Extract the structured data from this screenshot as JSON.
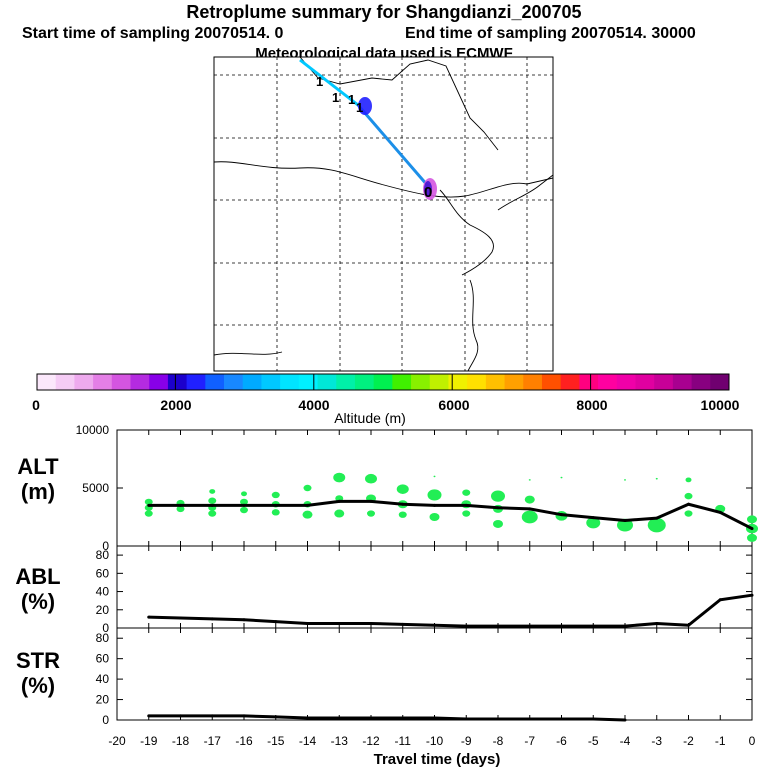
{
  "title": "Retroplume summary for Shangdianzi_200705",
  "subtitle_left": "Start time of sampling 20070514.    0",
  "subtitle_right": "End time of sampling 20070514. 30000",
  "met_data_note": "Meteorological data used is ECMWF",
  "colors": {
    "plume_line": "#1c8fe8",
    "plume_line_light": "#00c8ff",
    "dots": "#22ee55",
    "lines": "#000000"
  },
  "map": {
    "markers": [
      {
        "label": "1"
      },
      {
        "label": "1"
      },
      {
        "label": "1"
      },
      {
        "label": "1"
      },
      {
        "label": "0"
      }
    ]
  },
  "colorbar": {
    "label": "Altitude (m)",
    "ticks": [
      "0",
      "2000",
      "4000",
      "6000",
      "8000",
      "10000"
    ],
    "colors": [
      "#fbe8fb",
      "#f5ccf5",
      "#eeaaee",
      "#e47fe6",
      "#d455e0",
      "#b42be0",
      "#8800e8",
      "#1c00cc",
      "#2020ff",
      "#1060ff",
      "#1888ff",
      "#00aaff",
      "#00c8ff",
      "#00e4ff",
      "#00f0ff",
      "#00e8d8",
      "#00f0a8",
      "#00f080",
      "#00f050",
      "#40f000",
      "#88f000",
      "#c0f000",
      "#f0f000",
      "#ffe000",
      "#ffc000",
      "#ffa000",
      "#ff8000",
      "#ff5000",
      "#ff2020",
      "#ff0080",
      "#ff00a0",
      "#f000a8",
      "#e000a0",
      "#c80098",
      "#a80090",
      "#880080",
      "#700070"
    ]
  },
  "chart_data": [
    {
      "type": "line",
      "name": "ALT",
      "ylabel": "ALT\n(m)",
      "ylabel_lines": [
        "ALT",
        "(m)"
      ],
      "x": [
        -19,
        -18,
        -17,
        -16,
        -15,
        -14,
        -13,
        -12,
        -11,
        -10,
        -9,
        -8,
        -7,
        -6,
        -5,
        -4,
        -3,
        -2,
        -1,
        0
      ],
      "values": [
        3500,
        3500,
        3500,
        3500,
        3500,
        3500,
        3850,
        3850,
        3600,
        3500,
        3500,
        3300,
        3200,
        2700,
        2450,
        2200,
        2400,
        3600,
        2900,
        1500
      ],
      "ylim": [
        0,
        10000
      ],
      "yticks": [
        "0",
        "5000",
        "10000"
      ],
      "ytick_values": [
        0,
        5000,
        10000
      ],
      "dots": [
        {
          "x": -19,
          "y": 3800,
          "r": 4
        },
        {
          "x": -19,
          "y": 3300,
          "r": 4
        },
        {
          "x": -19,
          "y": 2800,
          "r": 4
        },
        {
          "x": -18,
          "y": 3700,
          "r": 4
        },
        {
          "x": -18,
          "y": 3200,
          "r": 4
        },
        {
          "x": -17,
          "y": 4700,
          "r": 3
        },
        {
          "x": -17,
          "y": 3900,
          "r": 4
        },
        {
          "x": -17,
          "y": 3300,
          "r": 4
        },
        {
          "x": -17,
          "y": 2800,
          "r": 4
        },
        {
          "x": -16,
          "y": 4500,
          "r": 3
        },
        {
          "x": -16,
          "y": 3800,
          "r": 4
        },
        {
          "x": -16,
          "y": 3100,
          "r": 4
        },
        {
          "x": -15,
          "y": 4400,
          "r": 4
        },
        {
          "x": -15,
          "y": 3600,
          "r": 4
        },
        {
          "x": -15,
          "y": 2900,
          "r": 4
        },
        {
          "x": -14,
          "y": 5000,
          "r": 4
        },
        {
          "x": -14,
          "y": 3600,
          "r": 4
        },
        {
          "x": -14,
          "y": 2700,
          "r": 5
        },
        {
          "x": -13,
          "y": 5900,
          "r": 6
        },
        {
          "x": -13,
          "y": 4100,
          "r": 4
        },
        {
          "x": -13,
          "y": 2800,
          "r": 5
        },
        {
          "x": -12,
          "y": 5800,
          "r": 6
        },
        {
          "x": -12,
          "y": 4100,
          "r": 5
        },
        {
          "x": -12,
          "y": 2800,
          "r": 4
        },
        {
          "x": -11,
          "y": 4900,
          "r": 6
        },
        {
          "x": -11,
          "y": 3600,
          "r": 5
        },
        {
          "x": -11,
          "y": 2700,
          "r": 4
        },
        {
          "x": -10,
          "y": 6000,
          "r": 1
        },
        {
          "x": -10,
          "y": 4400,
          "r": 7
        },
        {
          "x": -10,
          "y": 2500,
          "r": 5
        },
        {
          "x": -9,
          "y": 4600,
          "r": 4
        },
        {
          "x": -9,
          "y": 3600,
          "r": 5
        },
        {
          "x": -9,
          "y": 2800,
          "r": 4
        },
        {
          "x": -8,
          "y": 4300,
          "r": 7
        },
        {
          "x": -8,
          "y": 3200,
          "r": 5
        },
        {
          "x": -8,
          "y": 1900,
          "r": 5
        },
        {
          "x": -7,
          "y": 5700,
          "r": 1
        },
        {
          "x": -7,
          "y": 4000,
          "r": 5
        },
        {
          "x": -7,
          "y": 2500,
          "r": 8
        },
        {
          "x": -6,
          "y": 5900,
          "r": 1
        },
        {
          "x": -6,
          "y": 2600,
          "r": 6
        },
        {
          "x": -5,
          "y": 2000,
          "r": 7
        },
        {
          "x": -4,
          "y": 5700,
          "r": 1
        },
        {
          "x": -4,
          "y": 1800,
          "r": 8
        },
        {
          "x": -3,
          "y": 5800,
          "r": 1
        },
        {
          "x": -3,
          "y": 1800,
          "r": 9
        },
        {
          "x": -2,
          "y": 5700,
          "r": 3
        },
        {
          "x": -2,
          "y": 4300,
          "r": 4
        },
        {
          "x": -2,
          "y": 2800,
          "r": 4
        },
        {
          "x": -1,
          "y": 3200,
          "r": 5
        },
        {
          "x": 0,
          "y": 2300,
          "r": 5
        },
        {
          "x": 0,
          "y": 1500,
          "r": 6
        },
        {
          "x": 0,
          "y": 700,
          "r": 5
        }
      ]
    },
    {
      "type": "line",
      "name": "ABL",
      "ylabel_lines": [
        "ABL",
        "(%)"
      ],
      "x": [
        -19,
        -18,
        -17,
        -16,
        -15,
        -14,
        -13,
        -12,
        -11,
        -10,
        -9,
        -8,
        -7,
        -6,
        -5,
        -4,
        -3,
        -2,
        -1,
        0
      ],
      "values": [
        12,
        11,
        10,
        9,
        7,
        5,
        5,
        5,
        4,
        3,
        2,
        2,
        2,
        2,
        2,
        2,
        5,
        3,
        31,
        36
      ],
      "ylim": [
        0,
        90
      ],
      "yticks": [
        "0",
        "20",
        "40",
        "60",
        "80"
      ],
      "ytick_values": [
        0,
        20,
        40,
        60,
        80
      ]
    },
    {
      "type": "line",
      "name": "STR",
      "ylabel_lines": [
        "STR",
        "(%)"
      ],
      "x": [
        -19,
        -18,
        -17,
        -16,
        -15,
        -14,
        -13,
        -12,
        -11,
        -10,
        -9,
        -8,
        -7,
        -6,
        -5,
        -4
      ],
      "values": [
        4,
        4,
        4,
        4,
        3,
        2,
        2,
        2,
        2,
        2,
        1,
        1,
        1,
        1,
        1,
        0
      ],
      "ylim": [
        0,
        90
      ],
      "yticks": [
        "0",
        "20",
        "40",
        "60",
        "80"
      ],
      "ytick_values": [
        0,
        20,
        40,
        60,
        80
      ]
    }
  ],
  "xaxis": {
    "label": "Travel time (days)",
    "ticks": [
      "-20",
      "-19",
      "-18",
      "-17",
      "-16",
      "-15",
      "-14",
      "-13",
      "-12",
      "-11",
      "-10",
      "-9",
      "-8",
      "-7",
      "-6",
      "-5",
      "-4",
      "-3",
      "-2",
      "-1",
      "0"
    ],
    "tick_values": [
      -20,
      -19,
      -18,
      -17,
      -16,
      -15,
      -14,
      -13,
      -12,
      -11,
      -10,
      -9,
      -8,
      -7,
      -6,
      -5,
      -4,
      -3,
      -2,
      -1,
      0
    ]
  }
}
